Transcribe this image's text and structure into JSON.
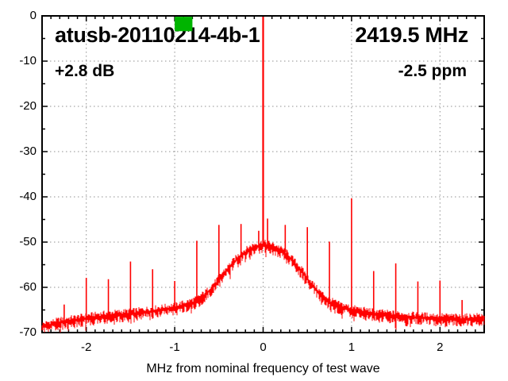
{
  "chart_data": {
    "type": "line",
    "title_left": "atusb-20110214-4b-1",
    "title_right": "2419.5 MHz",
    "gain_label": "+2.8 dB",
    "ppm_label": "-2.5 ppm",
    "xlabel": "MHz from nominal frequency of test wave",
    "xlim": [
      -2.5,
      2.5
    ],
    "ylim": [
      -70,
      0
    ],
    "x_ticks": [
      -2,
      -1,
      0,
      1,
      2
    ],
    "x_minor_step": 0.1,
    "y_ticks": [
      0,
      -10,
      -20,
      -30,
      -40,
      -50,
      -60,
      -70
    ],
    "y_minor_step": 5,
    "grid": true,
    "legend": "none",
    "colors": {
      "trace": "#ff0000",
      "grid": "#909090",
      "axis": "#000000",
      "text": "#000000",
      "marker": "#00b400",
      "background": "#ffffff"
    },
    "noise_jitter_db": 1.2,
    "envelope_db": [
      [
        -2.5,
        -68.8
      ],
      [
        -2.3,
        -67.8
      ],
      [
        -2.0,
        -66.9
      ],
      [
        -1.75,
        -66.3
      ],
      [
        -1.5,
        -65.9
      ],
      [
        -1.25,
        -65.3
      ],
      [
        -1.0,
        -64.6
      ],
      [
        -0.85,
        -63.8
      ],
      [
        -0.75,
        -63.1
      ],
      [
        -0.65,
        -61.6
      ],
      [
        -0.55,
        -59.6
      ],
      [
        -0.5,
        -58.4
      ],
      [
        -0.45,
        -57.2
      ],
      [
        -0.4,
        -56.1
      ],
      [
        -0.35,
        -55.0
      ],
      [
        -0.3,
        -53.9
      ],
      [
        -0.25,
        -53.1
      ],
      [
        -0.2,
        -52.3
      ],
      [
        -0.15,
        -51.7
      ],
      [
        -0.1,
        -51.2
      ],
      [
        -0.05,
        -50.9
      ],
      [
        0.0,
        -50.7
      ],
      [
        0.05,
        -50.8
      ],
      [
        0.1,
        -51.1
      ],
      [
        0.15,
        -51.5
      ],
      [
        0.2,
        -52.0
      ],
      [
        0.25,
        -52.6
      ],
      [
        0.3,
        -53.5
      ],
      [
        0.35,
        -54.6
      ],
      [
        0.4,
        -55.7
      ],
      [
        0.45,
        -56.9
      ],
      [
        0.5,
        -58.1
      ],
      [
        0.55,
        -59.5
      ],
      [
        0.65,
        -61.7
      ],
      [
        0.75,
        -63.3
      ],
      [
        0.85,
        -64.2
      ],
      [
        1.0,
        -65.1
      ],
      [
        1.25,
        -65.9
      ],
      [
        1.5,
        -66.4
      ],
      [
        1.75,
        -66.7
      ],
      [
        2.0,
        -66.9
      ],
      [
        2.25,
        -67.1
      ],
      [
        2.5,
        -66.8
      ]
    ],
    "spurs_db": [
      [
        -2.25,
        -63.8
      ],
      [
        -2.0,
        -57.9
      ],
      [
        -1.75,
        -58.2
      ],
      [
        -1.5,
        -54.3
      ],
      [
        -1.25,
        -56.0
      ],
      [
        -1.0,
        -58.6
      ],
      [
        -0.75,
        -49.7
      ],
      [
        -0.5,
        -46.2
      ],
      [
        -0.25,
        -46.0
      ],
      [
        -0.05,
        -47.5
      ],
      [
        0.05,
        -44.8
      ],
      [
        0.25,
        -46.2
      ],
      [
        0.5,
        -46.7
      ],
      [
        0.75,
        -49.9
      ],
      [
        1.0,
        -40.3
      ],
      [
        1.25,
        -56.4
      ],
      [
        1.5,
        -54.7
      ],
      [
        1.75,
        -58.7
      ],
      [
        2.0,
        -58.5
      ],
      [
        2.25,
        -62.8
      ]
    ],
    "carrier": {
      "x_mhz": 0,
      "peak_db": -0.2
    },
    "marker": {
      "x0_mhz": -1.0,
      "x1_mhz": -0.8,
      "y0_db": -0.2,
      "y1_db": -3.4
    }
  }
}
